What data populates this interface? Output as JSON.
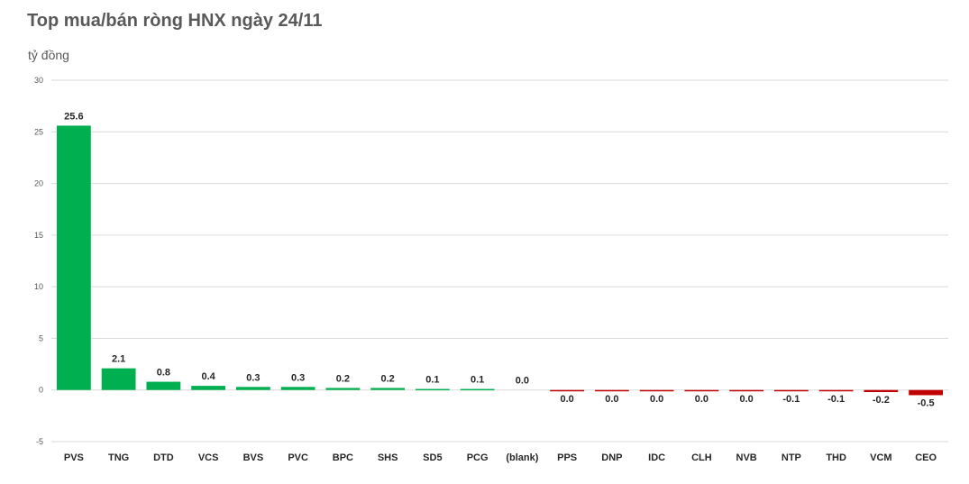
{
  "title": "Top mua/bán ròng HNX ngày 24/11",
  "unit_label": "tỷ đồng",
  "colors": {
    "positive": "#00b050",
    "negative": "#c00000",
    "grid": "#d9d9d9"
  },
  "chart_data": {
    "type": "bar",
    "title": "Top mua/bán ròng HNX ngày 24/11",
    "ylabel": "tỷ đồng",
    "xlabel": "",
    "ylim": [
      -5,
      30
    ],
    "yticks": [
      30,
      25,
      20,
      15,
      10,
      5,
      0,
      -5
    ],
    "grid": true,
    "categories": [
      "PVS",
      "TNG",
      "DTD",
      "VCS",
      "BVS",
      "PVC",
      "BPC",
      "SHS",
      "SD5",
      "PCG",
      "(blank)",
      "PPS",
      "DNP",
      "IDC",
      "CLH",
      "NVB",
      "NTP",
      "THD",
      "VCM",
      "CEO"
    ],
    "values": [
      25.6,
      2.1,
      0.8,
      0.4,
      0.3,
      0.3,
      0.2,
      0.2,
      0.1,
      0.1,
      0.0,
      -0.04,
      -0.04,
      -0.04,
      -0.04,
      -0.04,
      -0.1,
      -0.1,
      -0.2,
      -0.5
    ],
    "labels": [
      "25.6",
      "2.1",
      "0.8",
      "0.4",
      "0.3",
      "0.3",
      "0.2",
      "0.2",
      "0.1",
      "0.1",
      "0.0",
      "0.0",
      "0.0",
      "0.0",
      "0.0",
      "0.0",
      "-0.1",
      "-0.1",
      "-0.2",
      "-0.5"
    ]
  }
}
